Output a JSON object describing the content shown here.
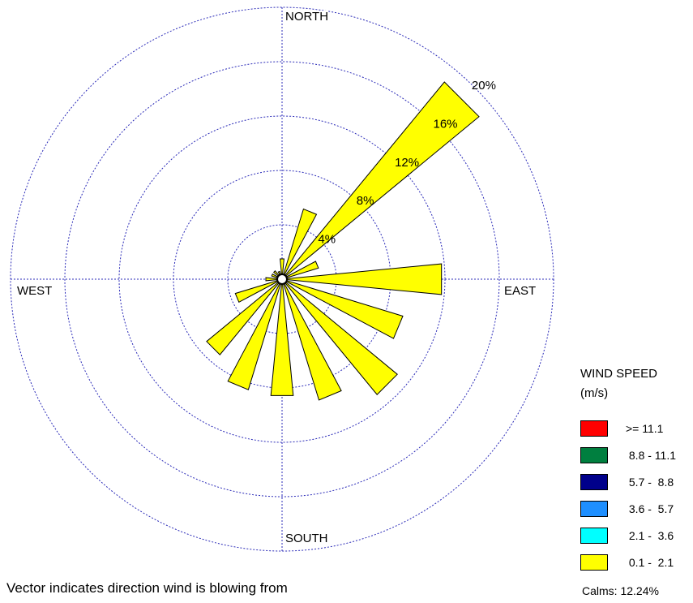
{
  "chart_data": {
    "type": "windrose",
    "directions": [
      "N",
      "NNE",
      "NE",
      "ENE",
      "E",
      "ESE",
      "SE",
      "SSE",
      "S",
      "SSW",
      "SW",
      "WSW",
      "W",
      "WNW",
      "NW",
      "NNW"
    ],
    "direction_degrees": [
      0,
      22.5,
      45,
      67.5,
      90,
      112.5,
      135,
      157.5,
      180,
      202.5,
      225,
      247.5,
      270,
      292.5,
      315,
      337.5
    ],
    "series": [
      {
        "name": "0.1 - 2.1",
        "color": "#ffff00",
        "values": [
          1.5,
          5.4,
          18.8,
          2.8,
          11.8,
          9.3,
          11.0,
          9.3,
          8.6,
          8.5,
          7.2,
          3.6,
          1.2,
          0.8,
          0.8,
          0.6
        ]
      }
    ],
    "rings": [
      4,
      8,
      12,
      16,
      20
    ],
    "ring_labels": [
      "4%",
      "8%",
      "12%",
      "16%",
      "20%"
    ],
    "cardinal_labels": {
      "north": "NORTH",
      "east": "EAST",
      "south": "SOUTH",
      "west": "WEST"
    }
  },
  "legend": {
    "title_line1": "WIND SPEED",
    "title_line2": "(m/s)",
    "items": [
      {
        "label": ">= 11.1",
        "color": "#ff0000"
      },
      {
        "label": " 8.8 - 11.1",
        "color": "#007f3f"
      },
      {
        "label": " 5.7 -  8.8",
        "color": "#00008b"
      },
      {
        "label": " 3.6 -  5.7",
        "color": "#1e8fff"
      },
      {
        "label": " 2.1 -  3.6",
        "color": "#00ffff"
      },
      {
        "label": " 0.1 -  2.1",
        "color": "#ffff00"
      }
    ],
    "calms": "Calms: 12.24%"
  },
  "footnote": "Vector indicates direction wind is blowing from"
}
